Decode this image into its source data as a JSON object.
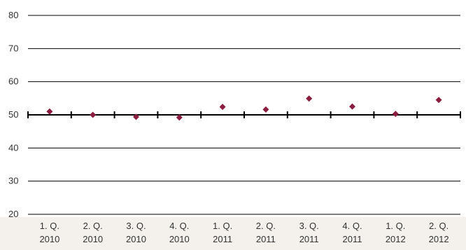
{
  "chart_data": {
    "type": "scatter",
    "title": "",
    "xlabel": "",
    "ylabel": "",
    "ylim": [
      20,
      80
    ],
    "yticks": [
      20,
      30,
      40,
      50,
      60,
      70,
      80
    ],
    "reference_line": 50,
    "grid": true,
    "categories": [
      {
        "q": "1. Q.",
        "y": "2010"
      },
      {
        "q": "2. Q.",
        "y": "2010"
      },
      {
        "q": "3. Q.",
        "y": "2010"
      },
      {
        "q": "4. Q.",
        "y": "2010"
      },
      {
        "q": "1. Q.",
        "y": "2011"
      },
      {
        "q": "2. Q.",
        "y": "2011"
      },
      {
        "q": "3. Q.",
        "y": "2011"
      },
      {
        "q": "4. Q.",
        "y": "2011"
      },
      {
        "q": "1. Q.",
        "y": "2012"
      },
      {
        "q": "2. Q.",
        "y": "2012"
      }
    ],
    "series": [
      {
        "values": [
          51.0,
          50.0,
          49.4,
          49.2,
          52.4,
          51.6,
          54.9,
          52.5,
          50.3,
          54.5
        ],
        "color": "#8b1e3f",
        "marker": "diamond"
      }
    ],
    "colors": {
      "background": "#f4f1ed",
      "plot_background": "#ffffff",
      "grid": "#000000",
      "text": "#333333"
    }
  }
}
